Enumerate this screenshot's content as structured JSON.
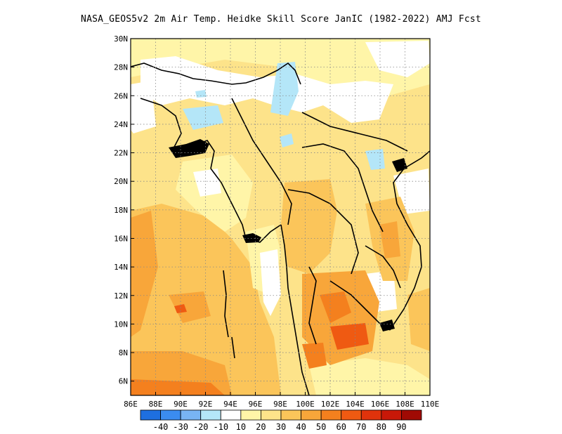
{
  "title": "NASA_GEOS5v2  2m Air Temp. Heidke Skill Score JanIC (1982-2022) AMJ Fcst",
  "map": {
    "lon_range": [
      86,
      110
    ],
    "lat_range": [
      5,
      30
    ],
    "lon_ticks": [
      {
        "value": 86,
        "label": "86E"
      },
      {
        "value": 88,
        "label": "88E"
      },
      {
        "value": 90,
        "label": "90E"
      },
      {
        "value": 92,
        "label": "92E"
      },
      {
        "value": 94,
        "label": "94E"
      },
      {
        "value": 96,
        "label": "96E"
      },
      {
        "value": 98,
        "label": "98E"
      },
      {
        "value": 100,
        "label": "100E"
      },
      {
        "value": 102,
        "label": "102E"
      },
      {
        "value": 104,
        "label": "104E"
      },
      {
        "value": 106,
        "label": "106E"
      },
      {
        "value": 108,
        "label": "108E"
      },
      {
        "value": 110,
        "label": "110E"
      }
    ],
    "lat_ticks": [
      {
        "value": 6,
        "label": "6N"
      },
      {
        "value": 8,
        "label": "8N"
      },
      {
        "value": 10,
        "label": "10N"
      },
      {
        "value": 12,
        "label": "12N"
      },
      {
        "value": 14,
        "label": "14N"
      },
      {
        "value": 16,
        "label": "16N"
      },
      {
        "value": 18,
        "label": "18N"
      },
      {
        "value": 20,
        "label": "20N"
      },
      {
        "value": 22,
        "label": "22N"
      },
      {
        "value": 24,
        "label": "24N"
      },
      {
        "value": 26,
        "label": "26N"
      },
      {
        "value": 28,
        "label": "28N"
      },
      {
        "value": 30,
        "label": "30N"
      }
    ],
    "grid": true
  },
  "colorbar": {
    "colors": [
      "#1e6fe0",
      "#3b8cf0",
      "#78b4f4",
      "#b4e6f8",
      "#ffffff",
      "#fff5a8",
      "#fde38a",
      "#fbc55a",
      "#f8a63a",
      "#f4801e",
      "#ef5a12",
      "#e0330c",
      "#c81808",
      "#a00a04"
    ],
    "labels": [
      "-40",
      "-30",
      "-20",
      "-10",
      "10",
      "20",
      "30",
      "40",
      "50",
      "60",
      "70",
      "80",
      "90"
    ]
  }
}
